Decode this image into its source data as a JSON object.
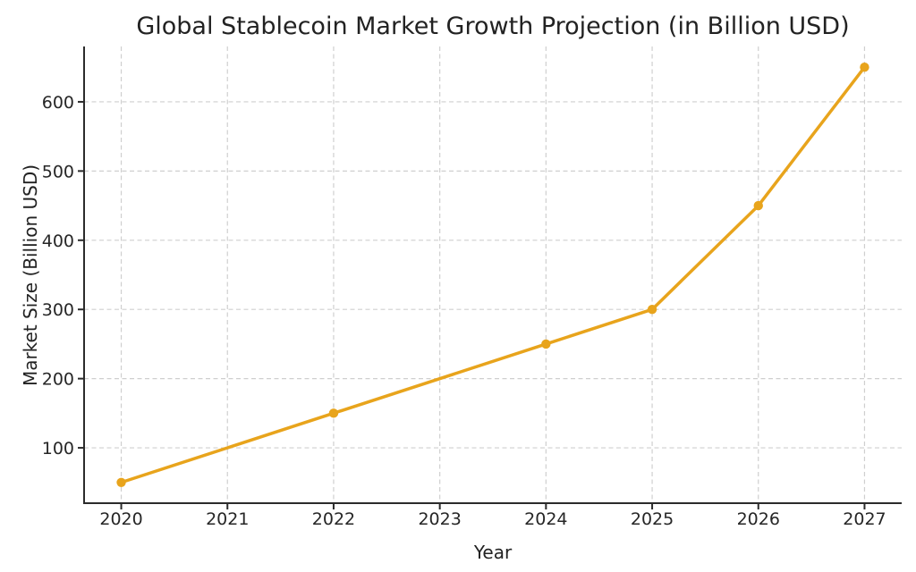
{
  "chart_data": {
    "type": "line",
    "title": "Global Stablecoin Market Growth Projection (in Billion USD)",
    "xlabel": "Year",
    "ylabel": "Market Size (Billion USD)",
    "x": [
      2020,
      2022,
      2024,
      2025,
      2026,
      2027
    ],
    "y": [
      50,
      150,
      250,
      300,
      450,
      650
    ],
    "x_tick_labels": [
      "2020",
      "2021",
      "2022",
      "2023",
      "2024",
      "2025",
      "2026",
      "2027"
    ],
    "x_tick_values": [
      2020,
      2021,
      2022,
      2023,
      2024,
      2025,
      2026,
      2027
    ],
    "y_tick_labels": [
      "100",
      "200",
      "300",
      "400",
      "500",
      "600"
    ],
    "y_tick_values": [
      100,
      200,
      300,
      400,
      500,
      600
    ],
    "xlim": [
      2019.65,
      2027.35
    ],
    "ylim": [
      20,
      680
    ],
    "grid": true,
    "legend": false,
    "marker": "o",
    "styles": {
      "line_color": "#E8A41C",
      "marker_color": "#E8A41C",
      "grid_color": "#cfcfcf",
      "axis_color": "#2b2b2b",
      "tick_text_color": "#262626",
      "background": "#ffffff"
    }
  }
}
